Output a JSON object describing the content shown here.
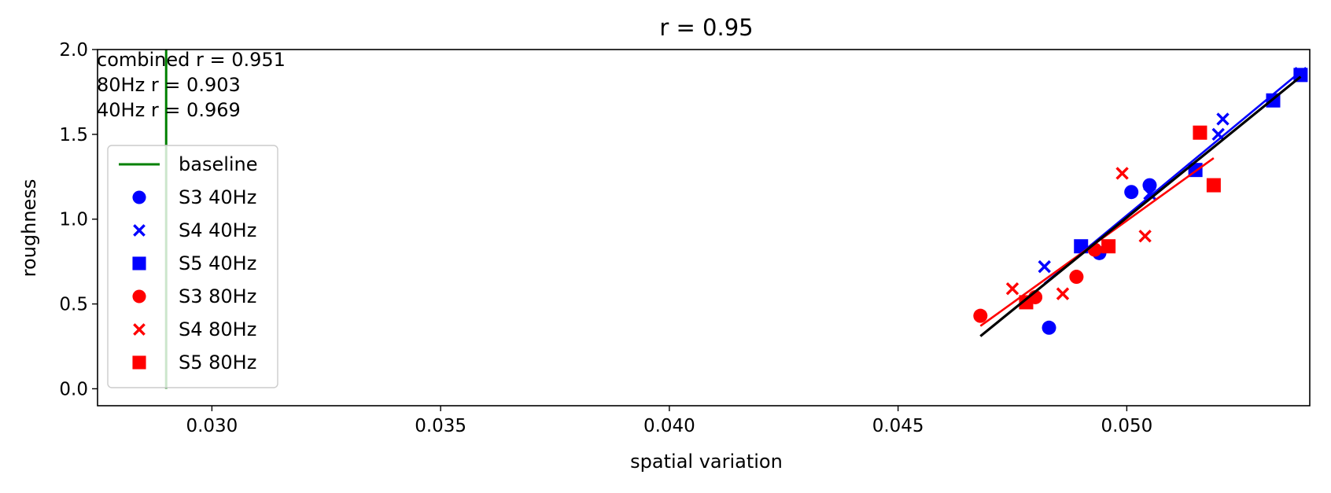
{
  "chart_data": {
    "type": "scatter",
    "title": "r = 0.95",
    "xlabel": "spatial variation",
    "ylabel": "roughness",
    "xlim": [
      0.0275,
      0.054
    ],
    "ylim": [
      -0.1,
      2.0
    ],
    "xticks": [
      0.03,
      0.035,
      0.04,
      0.045,
      0.05
    ],
    "xtick_labels": [
      "0.030",
      "0.035",
      "0.040",
      "0.045",
      "0.050"
    ],
    "yticks": [
      0.0,
      0.5,
      1.0,
      1.5,
      2.0
    ],
    "ytick_labels": [
      "0.0",
      "0.5",
      "1.0",
      "1.5",
      "2.0"
    ],
    "grid": false,
    "legend_position": "center-left",
    "annotations": [
      "combined r = 0.951",
      "80Hz r = 0.903",
      "40Hz r = 0.969"
    ],
    "colors": {
      "40Hz": "#0000ff",
      "80Hz": "#ff0000",
      "baseline": "#008000",
      "combined": "#000000"
    },
    "baseline": {
      "name": "baseline",
      "x": 0.029,
      "y": [
        0.0,
        2.0
      ],
      "color": "#008000"
    },
    "series": [
      {
        "name": "S3 40Hz",
        "marker": "circle",
        "color": "#0000ff",
        "x": [
          0.0483,
          0.0494,
          0.0501,
          0.0505
        ],
        "y": [
          0.36,
          0.8,
          1.16,
          1.2
        ]
      },
      {
        "name": "S4 40Hz",
        "marker": "x",
        "color": "#0000ff",
        "x": [
          0.0482,
          0.0505,
          0.052,
          0.0521,
          0.0538
        ],
        "y": [
          0.72,
          1.15,
          1.5,
          1.59,
          1.86
        ]
      },
      {
        "name": "S5 40Hz",
        "marker": "square",
        "color": "#0000ff",
        "x": [
          0.049,
          0.0515,
          0.0532,
          0.0538
        ],
        "y": [
          0.84,
          1.29,
          1.7,
          1.85
        ]
      },
      {
        "name": "S3 80Hz",
        "marker": "circle",
        "color": "#ff0000",
        "x": [
          0.0468,
          0.048,
          0.0489,
          0.0493
        ],
        "y": [
          0.43,
          0.54,
          0.66,
          0.82
        ]
      },
      {
        "name": "S4 80Hz",
        "marker": "x",
        "color": "#ff0000",
        "x": [
          0.0475,
          0.0486,
          0.0499,
          0.0504
        ],
        "y": [
          0.59,
          0.56,
          1.27,
          0.9
        ]
      },
      {
        "name": "S5 80Hz",
        "marker": "square",
        "color": "#ff0000",
        "x": [
          0.0478,
          0.0496,
          0.0516,
          0.0519
        ],
        "y": [
          0.51,
          0.84,
          1.51,
          1.2
        ]
      }
    ],
    "fit_lines": [
      {
        "group": "40Hz",
        "color": "#0000ff",
        "x": [
          0.0482,
          0.0538
        ],
        "y": [
          0.62,
          1.87
        ]
      },
      {
        "group": "80Hz",
        "color": "#ff0000",
        "x": [
          0.0468,
          0.0519
        ],
        "y": [
          0.37,
          1.36
        ]
      },
      {
        "group": "combined",
        "color": "#000000",
        "x": [
          0.0468,
          0.0538
        ],
        "y": [
          0.31,
          1.84
        ]
      }
    ]
  }
}
